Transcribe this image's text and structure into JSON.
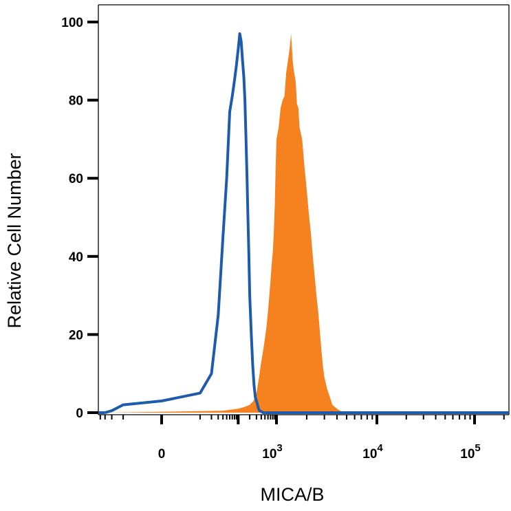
{
  "chart_data": {
    "type": "area",
    "title": "",
    "xlabel": "MICA/B",
    "ylabel": "Relative Cell Number",
    "x_scale": "biexponential",
    "ylim": [
      0,
      100
    ],
    "y_ticks": [
      "0",
      "20",
      "40",
      "60",
      "80",
      "100"
    ],
    "x_ticks": [
      {
        "value": 0,
        "label": "0",
        "exp": ""
      },
      {
        "value": 1000,
        "label": "10",
        "exp": "3"
      },
      {
        "value": 10000,
        "label": "10",
        "exp": "4"
      },
      {
        "value": 100000,
        "label": "10",
        "exp": "5"
      }
    ],
    "grid": false,
    "series": [
      {
        "color": "#f5821f",
        "style": "filled",
        "x": [
          -30,
          40,
          100,
          150,
          200,
          250,
          300,
          350,
          400,
          450,
          500,
          550,
          600,
          650,
          700,
          750,
          800,
          850,
          900,
          950,
          1000,
          1050,
          1100,
          1150,
          1200,
          1250,
          1300,
          1350,
          1400,
          1450,
          1500,
          1550,
          1600,
          1650,
          1700,
          1800,
          1900,
          2000,
          2100,
          2200,
          2300,
          2400,
          2500,
          2600,
          2700,
          2800,
          2900,
          3000,
          3200,
          3400,
          3600,
          3800,
          4000,
          4300,
          4600,
          5000
        ],
        "y": [
          0,
          0.5,
          1,
          1.5,
          2,
          3,
          5,
          9,
          13,
          16,
          19,
          22,
          26,
          30,
          34,
          38,
          41,
          46,
          53,
          63,
          70,
          73,
          78,
          80,
          81,
          87,
          90,
          93,
          97,
          90,
          87,
          85,
          79,
          78,
          73,
          70,
          63,
          57,
          51,
          46,
          40,
          35,
          30,
          26,
          21,
          16,
          12,
          9,
          6,
          4,
          2,
          1.5,
          1,
          0.5,
          0.2,
          0
        ]
      },
      {
        "color": "#1f5bab",
        "style": "line",
        "x": [
          -30,
          -20,
          -10,
          0,
          10,
          20,
          30,
          40,
          50,
          60,
          70,
          80,
          90,
          100,
          110,
          120,
          130,
          140,
          150,
          160,
          170,
          180,
          190,
          200,
          220,
          240,
          260,
          280,
          300,
          320,
          340,
          360,
          400,
          450,
          500
        ],
        "y": [
          0,
          0.5,
          2,
          3,
          5,
          10,
          25,
          45,
          60,
          77,
          81,
          85,
          89,
          93,
          97,
          95,
          90,
          86,
          80,
          70,
          60,
          50,
          40,
          30,
          20,
          12,
          7,
          4,
          3,
          2,
          1,
          0.5,
          0.3,
          0,
          0
        ]
      }
    ]
  }
}
